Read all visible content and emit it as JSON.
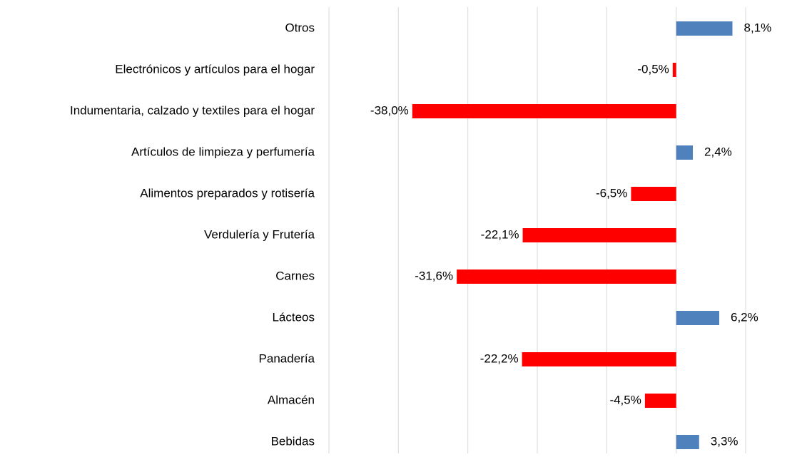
{
  "chart_data": {
    "type": "hbar",
    "categories": [
      "Otros",
      "Electrónicos y artículos para el hogar",
      "Indumentaria, calzado y textiles para el hogar",
      "Artículos de limpieza y perfumería",
      "Alimentos preparados y rotisería",
      "Verdulería y Frutería",
      "Carnes",
      "Lácteos",
      "Panadería",
      "Almacén",
      "Bebidas"
    ],
    "values": [
      8.1,
      -0.5,
      -38.0,
      2.4,
      -6.5,
      -22.1,
      -31.6,
      6.2,
      -22.2,
      -4.5,
      3.3
    ],
    "value_labels": [
      "8,1%",
      "-0,5%",
      "-38,0%",
      "2,4%",
      "-6,5%",
      "-22,1%",
      "-31,6%",
      "6,2%",
      "-22,2%",
      "-4,5%",
      "3,3%"
    ],
    "color": "#4f81bd",
    "negative_color": "#ff0000",
    "xlim": [
      -50,
      10
    ],
    "xticks": [
      -50,
      -40,
      -30,
      -20,
      -10,
      0,
      10
    ],
    "grid": true
  }
}
